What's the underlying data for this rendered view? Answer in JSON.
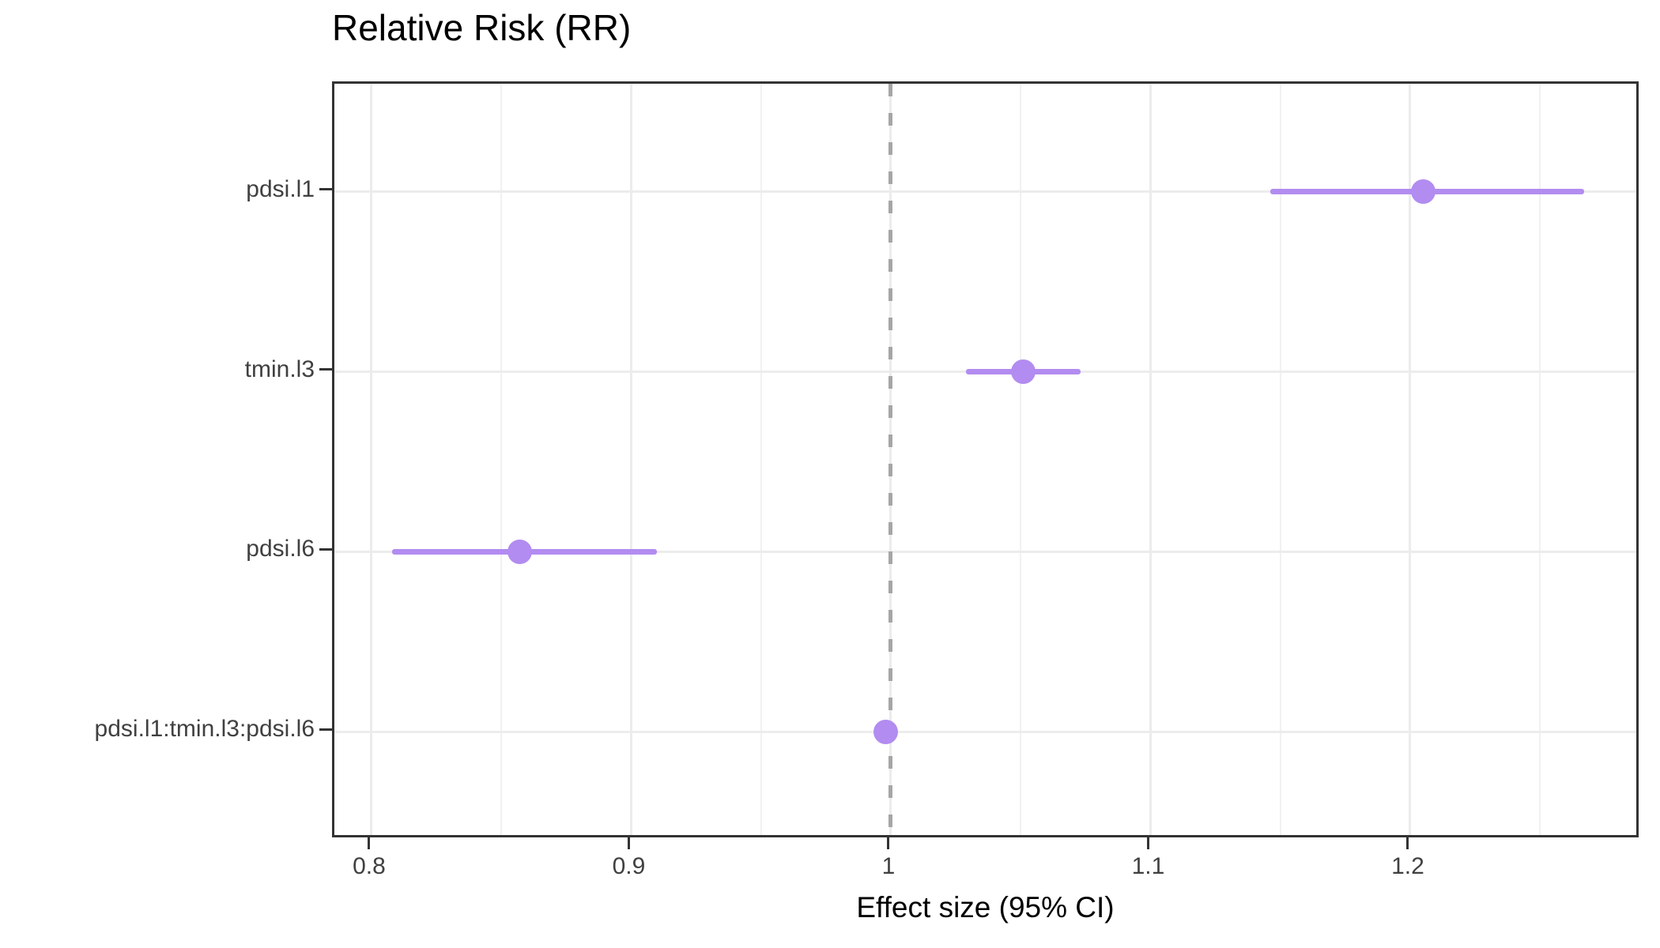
{
  "chart_data": {
    "type": "scatter",
    "subtype": "forest-plot",
    "title": "Relative Risk (RR)",
    "xlabel": "Effect size (95% CI)",
    "ylabel": "",
    "xlim": [
      0.7857,
      1.2889
    ],
    "grid": true,
    "legend_position": "none",
    "x_ticks": {
      "values": [
        0.8,
        0.9,
        1.0,
        1.1,
        1.2
      ],
      "labels": [
        "0.8",
        "0.9",
        "1",
        "1.1",
        "1.2"
      ]
    },
    "x_minor_ticks": [
      0.85,
      0.95,
      1.05,
      1.15,
      1.25
    ],
    "reference_line": {
      "x": 1.0,
      "style": "dashed"
    },
    "categories": [
      "pdsi.l1",
      "tmin.l3",
      "pdsi.l6",
      "pdsi.l1:tmin.l3:pdsi.l6"
    ],
    "points": [
      {
        "label": "pdsi.l1",
        "estimate": 1.205,
        "ci_low": 1.146,
        "ci_high": 1.267
      },
      {
        "label": "tmin.l3",
        "estimate": 1.051,
        "ci_low": 1.029,
        "ci_high": 1.073
      },
      {
        "label": "pdsi.l6",
        "estimate": 0.857,
        "ci_low": 0.808,
        "ci_high": 0.91
      },
      {
        "label": "pdsi.l1:tmin.l3:pdsi.l6",
        "estimate": 0.998,
        "ci_low": 0.995,
        "ci_high": 1.002
      }
    ],
    "colors": {
      "point": "#b28cf0",
      "ci_line": "#b28cf0",
      "reference_line": "#a6a6a6",
      "grid_major": "#ececec",
      "grid_minor": "#f1f1f1",
      "panel_border": "#333333",
      "axis_text": "#404040",
      "title_text": "#000000"
    }
  }
}
